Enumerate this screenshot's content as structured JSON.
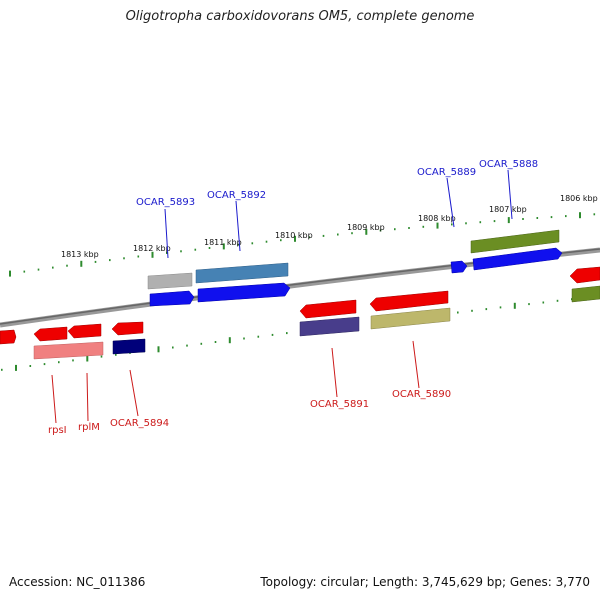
{
  "title": "Oligotropha carboxidovorans OM5, complete genome",
  "accession": "Accession: NC_011386",
  "summary": "Topology: circular; Length: 3,745,629 bp; Genes: 3,770",
  "kbp_labels": [
    "1813 kbp",
    "1812 kbp",
    "1811 kbp",
    "1810 kbp",
    "1809 kbp",
    "1808 kbp",
    "1807 kbp",
    "1806 kbp"
  ],
  "gene_labels_top": [
    "OCAR_5893",
    "OCAR_5892",
    "OCAR_5889",
    "OCAR_5888"
  ],
  "gene_labels_bottom": [
    "rpsI",
    "rplM",
    "OCAR_5894",
    "OCAR_5891",
    "OCAR_5890"
  ],
  "colors": {
    "backbone": "#808080",
    "tick": "#2e8b2e",
    "top_label": "#1a1acc",
    "bottom_label": "#cc1a1a",
    "gene_red": "#ee0000",
    "gene_blue": "#1010ee",
    "gene_navy": "#00007a",
    "gene_steel": "#4682b4",
    "gene_olive": "#6b8e23",
    "gene_pink": "#f08080",
    "gene_slate": "#483d8b",
    "gene_khaki": "#bdb76b",
    "gene_gray": "#b0b0b0"
  }
}
